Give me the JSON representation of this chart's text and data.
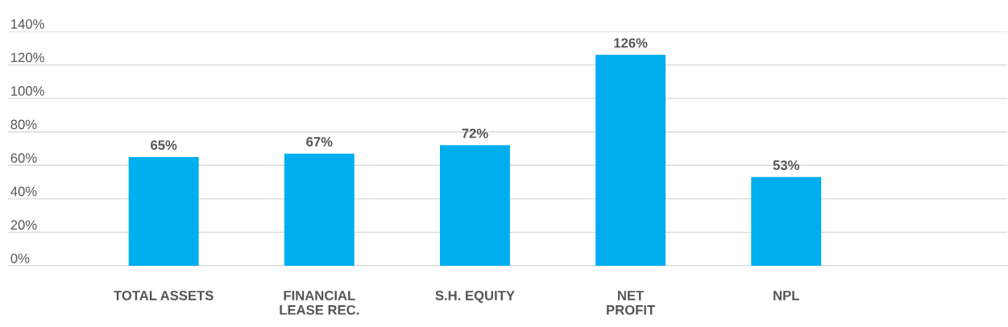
{
  "chart_data": {
    "type": "bar",
    "categories": [
      "TOTAL ASSETS",
      "FINANCIAL\nLEASE REC.",
      "S.H. EQUITY",
      "NET\nPROFIT",
      "NPL"
    ],
    "values": [
      65,
      67,
      72,
      126,
      53
    ],
    "color": "#00aeef",
    "ylim": [
      0,
      140
    ],
    "yticks": [
      {
        "value": 0,
        "label": "0%"
      },
      {
        "value": 20,
        "label": "20%"
      },
      {
        "value": 40,
        "label": "40%"
      },
      {
        "value": 60,
        "label": "60%"
      },
      {
        "value": 80,
        "label": "80%"
      },
      {
        "value": 100,
        "label": "100%"
      },
      {
        "value": 120,
        "label": "120%"
      },
      {
        "value": 140,
        "label": "140%"
      }
    ],
    "value_labels": [
      "65%",
      "67%",
      "72%",
      "126%",
      "53%"
    ],
    "grid": "y"
  }
}
